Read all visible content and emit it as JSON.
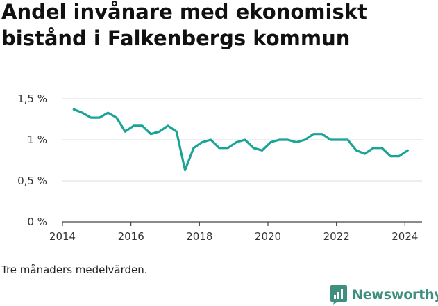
{
  "chart_data": {
    "type": "line",
    "title": "Andel invånare med ekonomiskt bistånd i Falkenbergs kommun",
    "xlabel": "",
    "ylabel": "",
    "xlim": [
      2014,
      2024.5
    ],
    "ylim": [
      0,
      1.5
    ],
    "x_ticks": [
      {
        "value": 2014,
        "label": "2014"
      },
      {
        "value": 2016,
        "label": "2016"
      },
      {
        "value": 2018,
        "label": "2018"
      },
      {
        "value": 2020,
        "label": "2020"
      },
      {
        "value": 2022,
        "label": "2022"
      },
      {
        "value": 2024,
        "label": "2024"
      }
    ],
    "y_ticks": [
      {
        "value": 0,
        "label": "0 %"
      },
      {
        "value": 0.5,
        "label": "0,5 %"
      },
      {
        "value": 1,
        "label": "1 %"
      },
      {
        "value": 1.5,
        "label": "1,5 %"
      }
    ],
    "grid": true,
    "series": [
      {
        "color": "#1aa396",
        "x": [
          2014.33,
          2014.58,
          2014.83,
          2015.08,
          2015.33,
          2015.58,
          2015.83,
          2016.08,
          2016.33,
          2016.58,
          2016.83,
          2017.08,
          2017.33,
          2017.58,
          2017.83,
          2018.08,
          2018.33,
          2018.58,
          2018.83,
          2019.08,
          2019.33,
          2019.58,
          2019.83,
          2020.08,
          2020.33,
          2020.58,
          2020.83,
          2021.08,
          2021.33,
          2021.58,
          2021.83,
          2022.08,
          2022.33,
          2022.58,
          2022.83,
          2023.08,
          2023.33,
          2023.58,
          2023.83,
          2024.08
        ],
        "values": [
          1.37,
          1.33,
          1.27,
          1.27,
          1.33,
          1.27,
          1.1,
          1.17,
          1.17,
          1.07,
          1.1,
          1.17,
          1.1,
          0.63,
          0.9,
          0.97,
          1.0,
          0.9,
          0.9,
          0.97,
          1.0,
          0.9,
          0.87,
          0.97,
          1.0,
          1.0,
          0.97,
          1.0,
          1.07,
          1.07,
          1.0,
          1.0,
          1.0,
          0.87,
          0.83,
          0.9,
          0.9,
          0.8,
          0.8,
          0.87
        ]
      }
    ]
  },
  "footnote": "Tre månaders medelvärden.",
  "brand": {
    "name": "Newsworthy",
    "icon": "newsworthy-logo-icon",
    "color": "#3f8f7f"
  }
}
